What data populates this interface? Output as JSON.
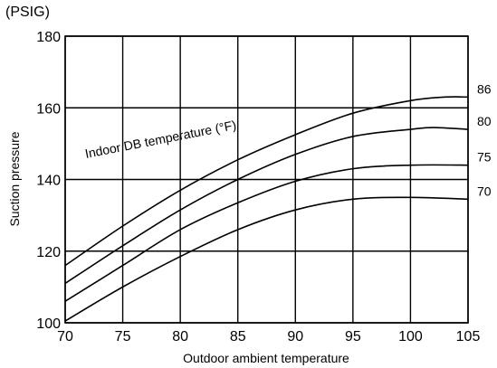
{
  "chart_data": {
    "type": "line",
    "title": "",
    "unit_label": "(PSIG)",
    "xlabel": "Outdoor ambient temperature",
    "ylabel": "Suction pressure",
    "xlim": [
      70,
      105
    ],
    "ylim": [
      100,
      180
    ],
    "xticks": [
      70,
      75,
      80,
      85,
      90,
      95,
      100,
      105
    ],
    "yticks": [
      100,
      120,
      140,
      160,
      180
    ],
    "grid": true,
    "annotation": "Indoor DB temperature (°F)",
    "series": [
      {
        "name": "86",
        "x": [
          70,
          75,
          80,
          85,
          90,
          95,
          100,
          103,
          105
        ],
        "y": [
          116,
          127,
          137,
          145.5,
          152.5,
          158.5,
          162,
          163,
          163
        ]
      },
      {
        "name": "80",
        "x": [
          70,
          75,
          80,
          85,
          90,
          95,
          100,
          102,
          105
        ],
        "y": [
          111,
          121.5,
          131.5,
          140,
          147,
          152,
          154,
          154.5,
          154
        ]
      },
      {
        "name": "75",
        "x": [
          70,
          75,
          80,
          85,
          90,
          95,
          100,
          105
        ],
        "y": [
          106,
          116,
          126,
          133.5,
          139.5,
          143,
          144,
          144
        ]
      },
      {
        "name": "70",
        "x": [
          70,
          75,
          80,
          85,
          90,
          95,
          100,
          105
        ],
        "y": [
          100.5,
          110,
          118.5,
          126,
          131.5,
          134.5,
          135,
          134.5
        ]
      }
    ]
  }
}
